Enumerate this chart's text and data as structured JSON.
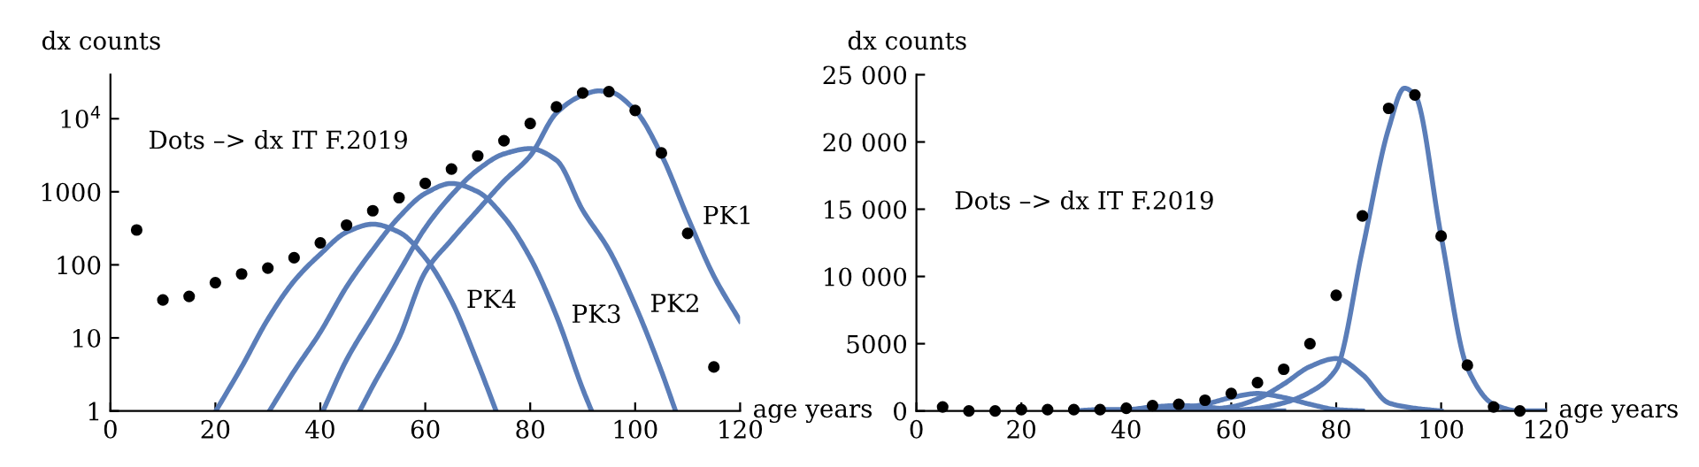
{
  "chart_data": [
    {
      "type": "line",
      "ylabel": "dx counts",
      "xlabel": "age years",
      "annotations": [
        "Dots –> dx IT F.2019"
      ],
      "log": "y",
      "xlim": [
        0,
        120
      ],
      "ylim": [
        1,
        40000
      ],
      "xticks": [
        0,
        20,
        40,
        60,
        80,
        100,
        120
      ],
      "yticks": [
        1,
        10,
        100,
        1000,
        {
          "value": 10000,
          "label": "10$^{4}$"
        }
      ],
      "grid": false,
      "legend": false,
      "series": [
        {
          "type": "scatter",
          "marker": "circle",
          "color": "#000000",
          "x": [
            5,
            10,
            15,
            20,
            25,
            30,
            35,
            40,
            45,
            50,
            55,
            60,
            65,
            70,
            75,
            80,
            85,
            90,
            95,
            100,
            105,
            110,
            115
          ],
          "values": [
            300,
            33,
            37,
            57,
            75,
            90,
            125,
            200,
            350,
            550,
            830,
            1300,
            2050,
            3100,
            5000,
            8600,
            14500,
            22500,
            23500,
            13000,
            3400,
            270,
            4
          ]
        },
        {
          "name": "PK1",
          "marker": "none",
          "color": "#5a7db8",
          "x": [
            47.5,
            50,
            55,
            60,
            65,
            70,
            75,
            80,
            85,
            90,
            93,
            95,
            100,
            105,
            110,
            115,
            120
          ],
          "values": [
            1,
            2.2,
            10,
            80,
            220,
            560,
            1400,
            3100,
            12000,
            21000,
            24000,
            23500,
            13000,
            3200,
            450,
            70,
            17
          ]
        },
        {
          "name": "PK2",
          "marker": "none",
          "color": "#5a7db8",
          "x": [
            40.5,
            45,
            50,
            55,
            60,
            65,
            70,
            75,
            80,
            85,
            90,
            95,
            100,
            105,
            107.7
          ],
          "values": [
            1,
            5,
            20,
            80,
            320,
            900,
            2000,
            3300,
            3900,
            2700,
            560,
            160,
            28,
            3.5,
            1
          ]
        },
        {
          "name": "PK3",
          "marker": "none",
          "color": "#5a7db8",
          "x": [
            30.3,
            35,
            40,
            45,
            50,
            55,
            60,
            65,
            70,
            75,
            80,
            85,
            90,
            91.7
          ],
          "values": [
            1,
            3.5,
            12,
            50,
            160,
            450,
            950,
            1300,
            1000,
            450,
            125,
            20,
            2,
            1
          ]
        },
        {
          "name": "PK4",
          "marker": "none",
          "color": "#5a7db8",
          "x": [
            20.1,
            25,
            30,
            35,
            40,
            45,
            50,
            55,
            60,
            65,
            70,
            73.5
          ],
          "values": [
            1,
            4,
            18,
            60,
            140,
            280,
            360,
            280,
            125,
            32,
            4.5,
            1
          ]
        }
      ]
    },
    {
      "type": "line",
      "ylabel": "dx counts",
      "xlabel": "age years",
      "annotations": [
        "Dots –> dx IT F.2019"
      ],
      "xlim": [
        0,
        120
      ],
      "ylim": [
        0,
        25000
      ],
      "xticks": [
        0,
        20,
        40,
        60,
        80,
        100,
        120
      ],
      "yticks": [
        0,
        5000,
        {
          "value": 10000,
          "label": "10 000"
        },
        {
          "value": 15000,
          "label": "15 000"
        },
        {
          "value": 20000,
          "label": "20 000"
        },
        {
          "value": 25000,
          "label": "25 000"
        }
      ],
      "grid": false,
      "legend": false,
      "series": [
        {
          "type": "scatter",
          "marker": "circle",
          "color": "#000000",
          "x": [
            5,
            10,
            15,
            20,
            25,
            30,
            35,
            40,
            45,
            50,
            55,
            60,
            65,
            70,
            75,
            80,
            85,
            90,
            95,
            100,
            105,
            110,
            115
          ],
          "values": [
            300,
            0,
            0,
            100,
            100,
            100,
            100,
            200,
            400,
            500,
            800,
            1300,
            2100,
            3100,
            5000,
            8600,
            14500,
            22500,
            23500,
            13000,
            3400,
            300,
            0
          ]
        },
        {
          "marker": "none",
          "color": "#5a7db8",
          "x": [
            60,
            65,
            70,
            75,
            80,
            85,
            90,
            93,
            95,
            100,
            105,
            110,
            115,
            120
          ],
          "values": [
            0,
            200,
            600,
            1400,
            3100,
            12000,
            21000,
            24000,
            23500,
            13000,
            3200,
            500,
            0,
            0
          ]
        },
        {
          "marker": "none",
          "color": "#5a7db8",
          "x": [
            50,
            55,
            60,
            65,
            70,
            75,
            80,
            85,
            90,
            95,
            100
          ],
          "values": [
            0,
            100,
            300,
            900,
            2000,
            3300,
            3900,
            2700,
            600,
            200,
            0
          ]
        },
        {
          "marker": "none",
          "color": "#5a7db8",
          "x": [
            40,
            45,
            50,
            55,
            60,
            65,
            70,
            75,
            80,
            85
          ],
          "values": [
            0,
            0,
            200,
            500,
            1000,
            1300,
            1000,
            500,
            100,
            0
          ]
        },
        {
          "marker": "none",
          "color": "#5a7db8",
          "x": [
            30,
            35,
            40,
            45,
            50,
            55,
            60,
            65,
            70
          ],
          "values": [
            0,
            100,
            100,
            300,
            400,
            300,
            100,
            0,
            0
          ]
        }
      ]
    }
  ]
}
